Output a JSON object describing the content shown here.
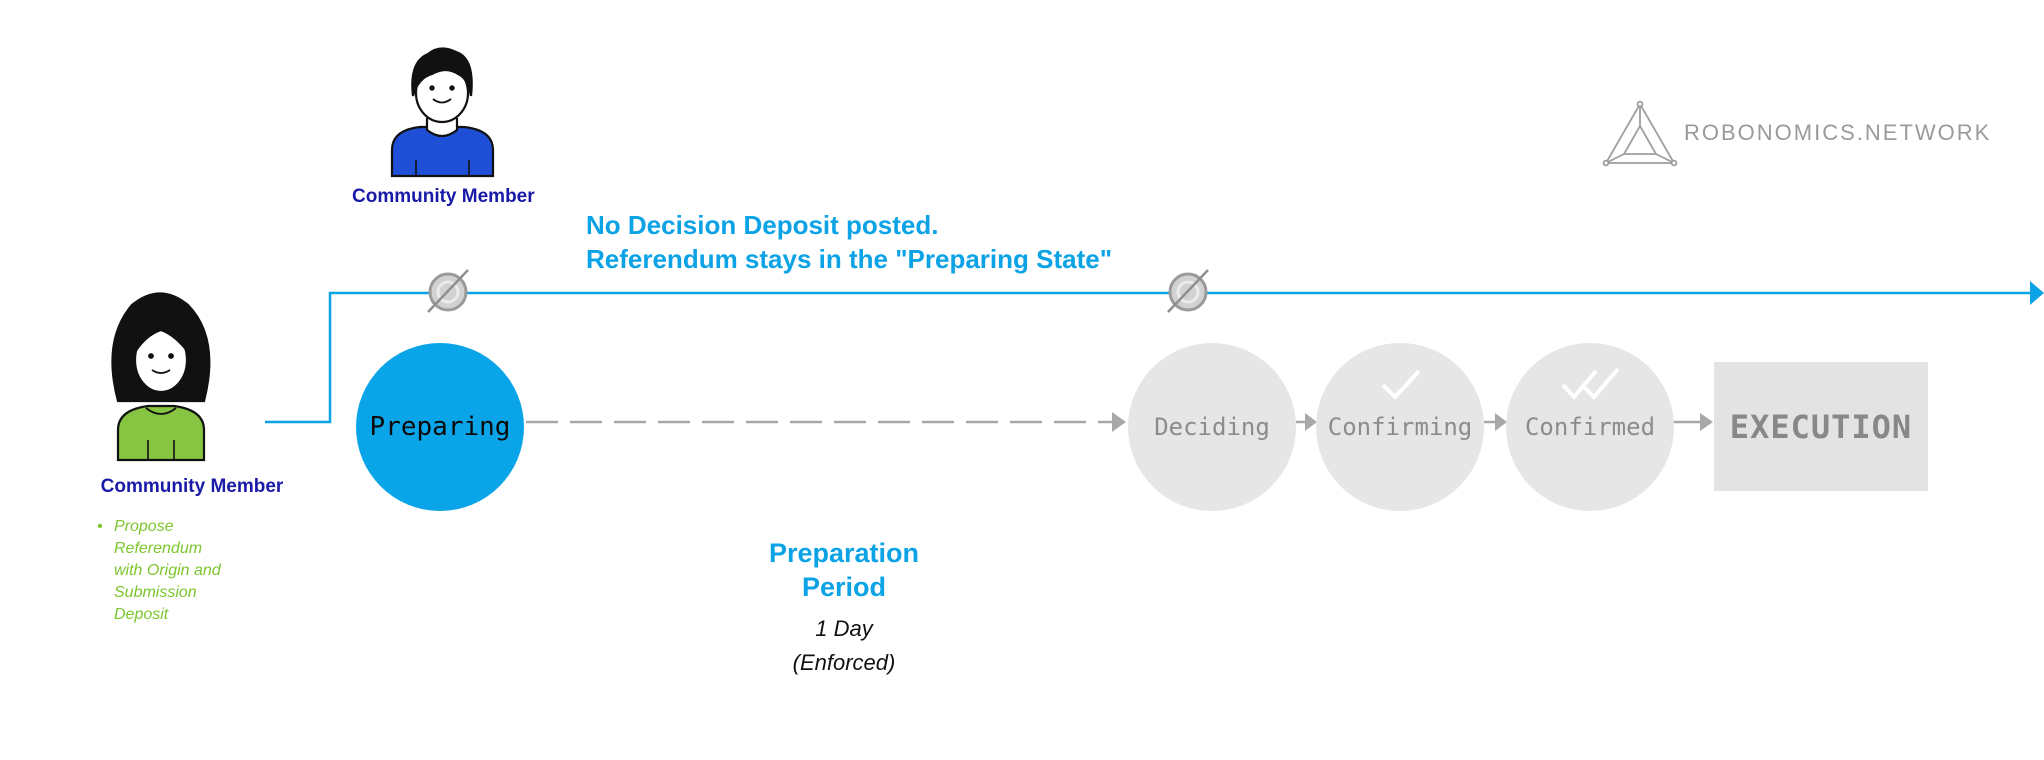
{
  "actors": {
    "top_member": {
      "label": "Community Member"
    },
    "proposer": {
      "label": "Community Member",
      "actions": [
        "Propose",
        "Referendum",
        "with Origin and",
        "Submission",
        "Deposit"
      ]
    }
  },
  "message": {
    "line1": "No Decision Deposit posted.",
    "line2": "Referendum stays in the \"Preparing State\""
  },
  "states": {
    "preparing": "Preparing",
    "deciding": "Deciding",
    "confirming": "Confirming",
    "confirmed": "Confirmed",
    "execution": "EXECUTION"
  },
  "period": {
    "title_line1": "Preparation",
    "title_line2": "Period",
    "duration": "1 Day",
    "note": "(Enforced)"
  },
  "brand": {
    "name": "ROBONOMICS.NETWORK"
  },
  "colors": {
    "accent_blue": "#0ba3e6",
    "member_label": "#1a1aa8",
    "action_green": "#7cc62e",
    "inactive_grey": "#e6e6e6",
    "inactive_text": "#8c8c8c"
  }
}
